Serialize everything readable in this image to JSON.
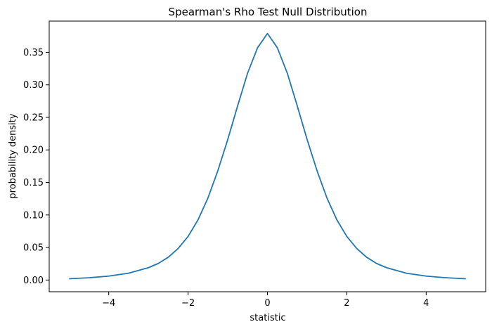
{
  "chart_data": {
    "type": "line",
    "title": "Spearman's Rho Test Null Distribution",
    "xlabel": "statistic",
    "ylabel": "probability density",
    "xlim": [
      -5.5,
      5.5
    ],
    "ylim": [
      -0.018,
      0.398
    ],
    "xticks": [
      -4,
      -2,
      0,
      2,
      4
    ],
    "xtick_labels": [
      "−4",
      "−2",
      "0",
      "2",
      "4"
    ],
    "yticks": [
      0.0,
      0.05,
      0.1,
      0.15,
      0.2,
      0.25,
      0.3,
      0.35
    ],
    "ytick_labels": [
      "0.00",
      "0.05",
      "0.10",
      "0.15",
      "0.20",
      "0.25",
      "0.30",
      "0.35"
    ],
    "grid": false,
    "series": [
      {
        "color": "#1f77b4",
        "x": [
          -5.0,
          -4.5,
          -4.0,
          -3.5,
          -3.0,
          -2.75,
          -2.5,
          -2.25,
          -2.0,
          -1.75,
          -1.5,
          -1.25,
          -1.0,
          -0.75,
          -0.5,
          -0.25,
          0.0,
          0.25,
          0.5,
          0.75,
          1.0,
          1.25,
          1.5,
          1.75,
          2.0,
          2.25,
          2.5,
          2.75,
          3.0,
          3.5,
          4.0,
          4.5,
          5.0
        ],
        "y": [
          0.002,
          0.0035,
          0.006,
          0.0105,
          0.019,
          0.0255,
          0.035,
          0.0485,
          0.067,
          0.0925,
          0.126,
          0.168,
          0.216,
          0.268,
          0.318,
          0.357,
          0.379,
          0.357,
          0.318,
          0.268,
          0.216,
          0.168,
          0.126,
          0.0925,
          0.067,
          0.0485,
          0.035,
          0.0255,
          0.019,
          0.0105,
          0.006,
          0.0035,
          0.002
        ]
      }
    ]
  }
}
